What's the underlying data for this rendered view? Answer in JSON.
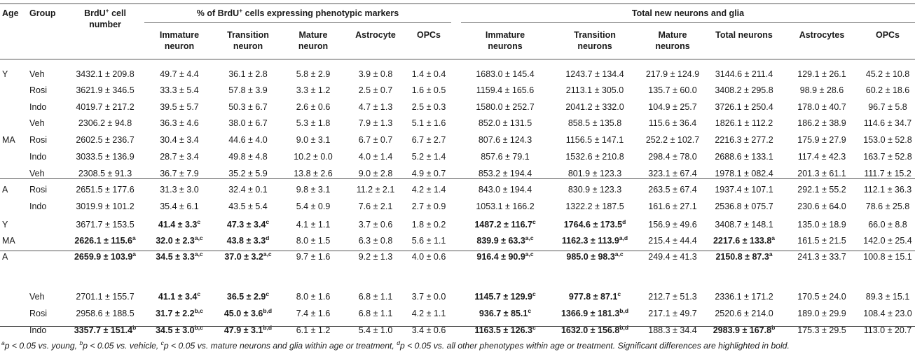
{
  "headers": {
    "age": "Age",
    "group": "Group",
    "brdu": [
      "BrdU",
      "+",
      " cell",
      "number"
    ],
    "pct_group": [
      "% of BrdU",
      "+",
      " cells expressing phenotypic markers"
    ],
    "total_group": "Total new neurons and glia",
    "pct_cols": [
      [
        "Immature",
        "neuron"
      ],
      [
        "Transition",
        "neuron"
      ],
      [
        "Mature",
        "neuron"
      ],
      [
        "Astrocyte"
      ],
      [
        "OPCs"
      ]
    ],
    "total_cols": [
      [
        "Immature",
        "neurons"
      ],
      [
        "Transition",
        "neurons"
      ],
      [
        "Mature",
        "neurons"
      ],
      [
        "Total neurons"
      ],
      [
        "Astrocytes"
      ],
      [
        "OPCs"
      ]
    ]
  },
  "sections": [
    {
      "rows": [
        {
          "age": "Y",
          "group": "Veh",
          "cells": [
            [
              "3432.1 ± 209.8"
            ],
            [
              "49.7 ± 4.4"
            ],
            [
              "36.1 ± 2.8"
            ],
            [
              "5.8 ± 2.9"
            ],
            [
              "3.9 ± 0.8"
            ],
            [
              "1.4 ± 0.4"
            ],
            [
              "1683.0 ± 145.4"
            ],
            [
              "1243.7 ± 134.4"
            ],
            [
              "217.9 ± 124.9"
            ],
            [
              "3144.6 ± 211.4"
            ],
            [
              "129.1 ± 26.1"
            ],
            [
              "45.2 ± 10.8"
            ]
          ]
        },
        {
          "age": "",
          "group": "Rosi",
          "cells": [
            [
              "3621.9 ± 346.5"
            ],
            [
              "33.3 ± 5.4"
            ],
            [
              "57.8 ± 3.9"
            ],
            [
              "3.3 ± 1.2"
            ],
            [
              "2.5 ± 0.7"
            ],
            [
              "1.6 ± 0.5"
            ],
            [
              "1159.4 ± 165.6"
            ],
            [
              "2113.1 ± 305.0"
            ],
            [
              "135.7 ± 60.0"
            ],
            [
              "3408.2 ± 295.8"
            ],
            [
              "98.9 ± 28.6"
            ],
            [
              "60.2 ± 18.6"
            ]
          ]
        },
        {
          "age": "",
          "group": "Indo",
          "cells": [
            [
              "4019.7 ± 217.2"
            ],
            [
              "39.5 ± 5.7"
            ],
            [
              "50.3 ± 6.7"
            ],
            [
              "2.6 ± 0.6"
            ],
            [
              "4.7 ± 1.3"
            ],
            [
              "2.5 ± 0.3"
            ],
            [
              "1580.0 ± 252.7"
            ],
            [
              "2041.2 ± 332.0"
            ],
            [
              "104.9 ± 25.7"
            ],
            [
              "3726.1 ± 250.4"
            ],
            [
              "178.0 ± 40.7"
            ],
            [
              "96.7 ± 5.8"
            ]
          ]
        },
        {
          "age": "",
          "group": "Veh",
          "cells": [
            [
              "2306.2 ± 94.8"
            ],
            [
              "36.3 ± 4.6"
            ],
            [
              "38.0 ± 6.7"
            ],
            [
              "5.3 ± 1.8"
            ],
            [
              "7.9 ± 1.3"
            ],
            [
              "5.1 ± 1.6"
            ],
            [
              "852.0 ± 131.5"
            ],
            [
              "858.5 ± 135.8"
            ],
            [
              "115.6 ± 36.4"
            ],
            [
              "1826.1 ± 112.2"
            ],
            [
              "186.2 ± 38.9"
            ],
            [
              "114.6 ± 34.7"
            ]
          ]
        },
        {
          "age": "MA",
          "group": "Rosi",
          "cells": [
            [
              "2602.5 ± 236.7"
            ],
            [
              "30.4 ± 3.4"
            ],
            [
              "44.6 ± 4.0"
            ],
            [
              "9.0 ± 3.1"
            ],
            [
              "6.7 ± 0.7"
            ],
            [
              "6.7 ± 2.7"
            ],
            [
              "807.6 ± 124.3"
            ],
            [
              "1156.5 ± 147.1"
            ],
            [
              "252.2 ± 102.7"
            ],
            [
              "2216.3 ± 277.2"
            ],
            [
              "175.9 ± 27.9"
            ],
            [
              "153.0 ± 52.8"
            ]
          ]
        },
        {
          "age": "",
          "group": "Indo",
          "cells": [
            [
              "3033.5 ± 136.9"
            ],
            [
              "28.7 ± 3.4"
            ],
            [
              "49.8 ± 4.8"
            ],
            [
              "10.2 ± 0.0"
            ],
            [
              "4.0 ± 1.4"
            ],
            [
              "5.2 ± 1.4"
            ],
            [
              "857.6 ± 79.1"
            ],
            [
              "1532.6 ± 210.8"
            ],
            [
              "298.4 ± 78.0"
            ],
            [
              "2688.6 ± 133.1"
            ],
            [
              "117.4 ± 42.3"
            ],
            [
              "163.7 ± 52.8"
            ]
          ]
        },
        {
          "age": "",
          "group": "Veh",
          "cells": [
            [
              "2308.5 ± 91.3"
            ],
            [
              "36.7 ± 7.9"
            ],
            [
              "35.2 ± 5.9"
            ],
            [
              "13.8 ± 2.6"
            ],
            [
              "9.0 ± 2.8"
            ],
            [
              "4.9 ± 0.7"
            ],
            [
              "853.2 ± 194.4"
            ],
            [
              "801.9 ± 123.3"
            ],
            [
              "323.1 ± 67.4"
            ],
            [
              "1978.1 ± 082.4"
            ],
            [
              "201.3 ± 61.1"
            ],
            [
              "111.7 ± 15.2"
            ]
          ]
        },
        {
          "age": "A",
          "group": "Rosi",
          "cells": [
            [
              "2651.5 ± 177.6"
            ],
            [
              "31.3 ± 3.0"
            ],
            [
              "32.4 ± 0.1"
            ],
            [
              "9.8 ± 3.1"
            ],
            [
              "11.2 ± 2.1"
            ],
            [
              "4.2 ± 1.4"
            ],
            [
              "843.0 ± 194.4"
            ],
            [
              "830.9 ± 123.3"
            ],
            [
              "263.5 ± 67.4"
            ],
            [
              "1937.4 ± 107.1"
            ],
            [
              "292.1 ± 55.2"
            ],
            [
              "112.1 ± 36.3"
            ]
          ]
        },
        {
          "age": "",
          "group": "Indo",
          "cells": [
            [
              "3019.9 ± 101.2"
            ],
            [
              "35.4 ± 6.1"
            ],
            [
              "43.5 ± 5.4"
            ],
            [
              "5.4 ± 0.9"
            ],
            [
              "7.6 ± 2.1"
            ],
            [
              "2.7 ± 0.9"
            ],
            [
              "1053.1 ± 166.2"
            ],
            [
              "1322.2 ± 187.5"
            ],
            [
              "161.6 ± 27.1"
            ],
            [
              "2536.8 ± 075.7"
            ],
            [
              "230.6 ± 64.0"
            ],
            [
              "78.6 ± 25.8"
            ]
          ]
        }
      ]
    },
    {
      "rows": [
        {
          "age": "Y",
          "group": "",
          "cells": [
            [
              "3671.7 ± 153.5"
            ],
            [
              "41.4 ± 3.3",
              "c",
              1
            ],
            [
              "47.3 ± 3.4",
              "c",
              1
            ],
            [
              "4.1 ± 1.1"
            ],
            [
              "3.7 ± 0.6"
            ],
            [
              "1.8 ± 0.2"
            ],
            [
              "1487.2 ± 116.7",
              "c",
              1
            ],
            [
              "1764.6 ± 173.5",
              "d",
              1
            ],
            [
              "156.9 ± 49.6"
            ],
            [
              "3408.7 ± 148.1"
            ],
            [
              "135.0 ± 18.9"
            ],
            [
              "66.0 ± 8.8"
            ]
          ]
        },
        {
          "age": "MA",
          "group": "",
          "cells": [
            [
              "2626.1 ± 115.6",
              "a",
              1
            ],
            [
              "32.0 ± 2.3",
              "a,c",
              1
            ],
            [
              "43.8 ± 3.3",
              "d",
              1
            ],
            [
              "8.0 ± 1.5"
            ],
            [
              "6.3 ± 0.8"
            ],
            [
              "5.6 ± 1.1"
            ],
            [
              "839.9 ± 63.3",
              "a,c",
              1
            ],
            [
              "1162.3 ± 113.9",
              "a,d",
              1
            ],
            [
              "215.4 ± 44.4"
            ],
            [
              "2217.6 ± 133.8",
              "a",
              1
            ],
            [
              "161.5 ± 21.5"
            ],
            [
              "142.0 ± 25.4"
            ]
          ]
        },
        {
          "age": "A",
          "group": "",
          "cells": [
            [
              "2659.9 ± 103.9",
              "a",
              1
            ],
            [
              "34.5 ± 3.3",
              "a,c",
              1
            ],
            [
              "37.0 ± 3.2",
              "a,c",
              1
            ],
            [
              "9.7 ± 1.6"
            ],
            [
              "9.2 ± 1.3"
            ],
            [
              "4.0 ± 0.6"
            ],
            [
              "916.4 ± 90.9",
              "a,c",
              1
            ],
            [
              "985.0 ± 98.3",
              "a,c",
              1
            ],
            [
              "249.4 ± 41.3"
            ],
            [
              "2150.8 ± 87.3",
              "a",
              1
            ],
            [
              "241.3 ± 33.7"
            ],
            [
              "100.8 ± 15.1"
            ]
          ]
        }
      ]
    },
    {
      "rows": [
        {
          "age": "",
          "group": "Veh",
          "cells": [
            [
              "2701.1 ± 155.7"
            ],
            [
              "41.1 ± 3.4",
              "c",
              1
            ],
            [
              "36.5 ± 2.9",
              "c",
              1
            ],
            [
              "8.0 ± 1.6"
            ],
            [
              "6.8 ± 1.1"
            ],
            [
              "3.7 ± 0.0"
            ],
            [
              "1145.7 ± 129.9",
              "c",
              1
            ],
            [
              "977.8 ± 87.1",
              "c",
              1
            ],
            [
              "212.7 ± 51.3"
            ],
            [
              "2336.1 ± 171.2"
            ],
            [
              "170.5 ± 24.0"
            ],
            [
              "89.3 ± 15.1"
            ]
          ]
        },
        {
          "age": "",
          "group": "Rosi",
          "cells": [
            [
              "2958.6 ± 188.5"
            ],
            [
              "31.7 ± 2.2",
              "b,c",
              1
            ],
            [
              "45.0 ± 3.6",
              "b,d",
              1
            ],
            [
              "7.4 ± 1.6"
            ],
            [
              "6.8 ± 1.1"
            ],
            [
              "4.2 ± 1.1"
            ],
            [
              "936.7 ± 85.1",
              "c",
              1
            ],
            [
              "1366.9 ± 181.3",
              "b,d",
              1
            ],
            [
              "217.1 ± 49.7"
            ],
            [
              "2520.6 ± 214.0"
            ],
            [
              "189.0 ± 29.9"
            ],
            [
              "108.4 ± 23.0"
            ]
          ]
        },
        {
          "age": "",
          "group": "Indo",
          "cells": [
            [
              "3357.7 ± 151.4",
              "b",
              1
            ],
            [
              "34.5 ± 3.0",
              "b,c",
              1
            ],
            [
              "47.9 ± 3.1",
              "b,d",
              1
            ],
            [
              "6.1 ± 1.2"
            ],
            [
              "5.4 ± 1.0"
            ],
            [
              "3.4 ± 0.6"
            ],
            [
              "1163.5 ± 126.3",
              "c",
              1
            ],
            [
              "1632.0 ± 156.8",
              "b,d",
              1
            ],
            [
              "188.3 ± 34.4"
            ],
            [
              "2983.9 ± 167.8",
              "b",
              1
            ],
            [
              "175.3 ± 29.5"
            ],
            [
              "113.0 ± 20.7"
            ]
          ]
        }
      ]
    }
  ],
  "footnote": [
    [
      "a",
      "p < 0.05 vs. young, "
    ],
    [
      "b",
      "p < 0.05 vs. vehicle, "
    ],
    [
      "c",
      "p < 0.05 vs. mature neurons and glia within age or treatment, "
    ],
    [
      "d",
      "p < 0.05 vs. all other phenotypes within age or treatment. Significant differences are highlighted in bold."
    ]
  ]
}
